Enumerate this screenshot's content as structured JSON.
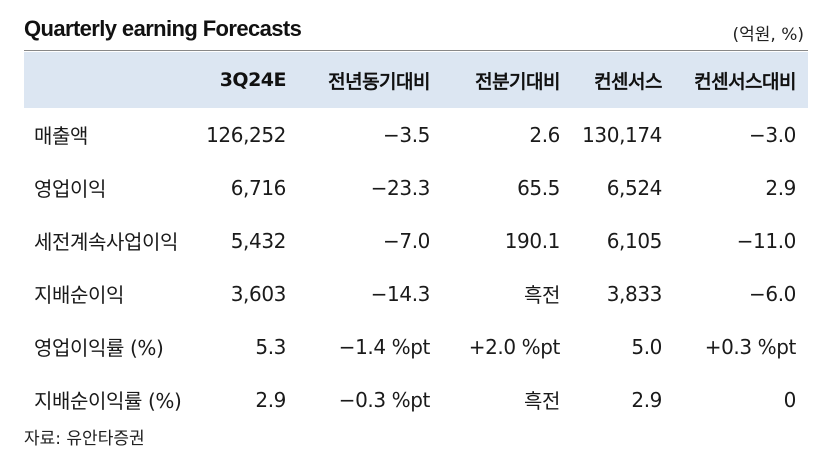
{
  "header": {
    "title": "Quarterly earning Forecasts",
    "unit": "(억원, %)"
  },
  "table": {
    "columns": [
      "",
      "3Q24E",
      "전년동기대비",
      "전분기대비",
      "컨센서스",
      "컨센서스대비"
    ],
    "rows": [
      {
        "label": "매출액",
        "cells": [
          "126,252",
          "−3.5",
          "2.6",
          "130,174",
          "−3.0"
        ]
      },
      {
        "label": "영업이익",
        "cells": [
          "6,716",
          "−23.3",
          "65.5",
          "6,524",
          "2.9"
        ]
      },
      {
        "label": "세전계속사업이익",
        "cells": [
          "5,432",
          "−7.0",
          "190.1",
          "6,105",
          "−11.0"
        ]
      },
      {
        "label": "지배순이익",
        "cells": [
          "3,603",
          "−14.3",
          "흑전",
          "3,833",
          "−6.0"
        ]
      },
      {
        "label": "영업이익률 (%)",
        "cells": [
          "5.3",
          "−1.4 %pt",
          "+2.0 %pt",
          "5.0",
          "+0.3 %pt"
        ]
      },
      {
        "label": "지배순이익률 (%)",
        "cells": [
          "2.9",
          "−0.3 %pt",
          "흑전",
          "2.9",
          "0"
        ]
      }
    ]
  },
  "footer": {
    "source": "자료: 유안타증권"
  }
}
